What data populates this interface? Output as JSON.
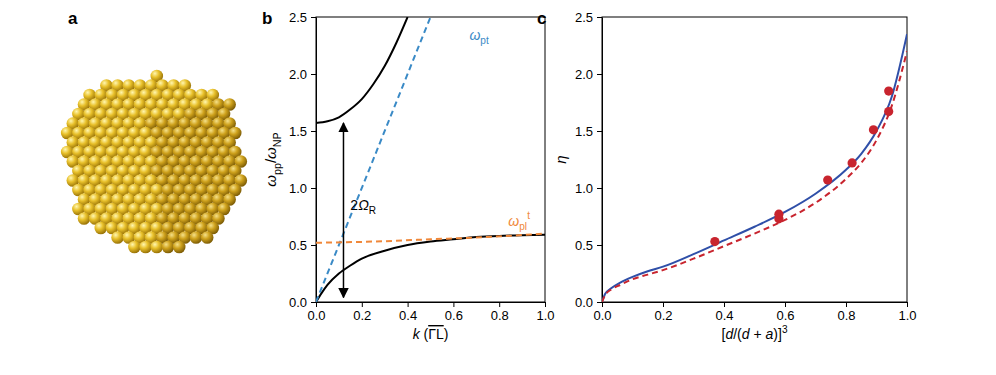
{
  "image_panel": {
    "label": "a"
  },
  "chart_data": [
    {
      "type": "line",
      "panel_label": "b",
      "xlabel": [
        {
          "italic": "k"
        },
        {
          "text": " ("
        },
        {
          "overline": "ΓL"
        },
        {
          "text": ")"
        }
      ],
      "ylabel": [
        {
          "italic": "ω"
        },
        {
          "sub": "pp"
        },
        {
          "text": "/"
        },
        {
          "italic": "ω"
        },
        {
          "sub": "NP"
        }
      ],
      "xlim": [
        0,
        1
      ],
      "ylim": [
        0,
        2.5
      ],
      "xticks": [
        {
          "value": 0,
          "label": "0.0"
        },
        0.2,
        0.4,
        0.6,
        0.8,
        {
          "value": 1,
          "label": "1.0"
        }
      ],
      "yticks": [
        {
          "value": 0,
          "label": "0.0"
        },
        0.5,
        {
          "value": 1,
          "label": "1.0"
        },
        1.5,
        {
          "value": 2,
          "label": "2.0"
        },
        2.5
      ],
      "series": [
        {
          "type": "line",
          "color": "#000000",
          "line_style": "solid",
          "x": [
            0,
            0.05,
            0.1,
            0.15,
            0.2,
            0.25,
            0.3,
            0.35,
            0.4
          ],
          "values": [
            1.57,
            1.585,
            1.62,
            1.69,
            1.78,
            1.91,
            2.07,
            2.27,
            2.5
          ]
        },
        {
          "type": "line",
          "color": "#000000",
          "line_style": "solid",
          "x": [
            0,
            0.025,
            0.05,
            0.1,
            0.15,
            0.2,
            0.3,
            0.4,
            0.5,
            0.6,
            0.7,
            0.8,
            0.9,
            1.0
          ],
          "values": [
            0,
            0.08,
            0.15,
            0.25,
            0.32,
            0.38,
            0.45,
            0.5,
            0.53,
            0.55,
            0.57,
            0.58,
            0.585,
            0.59
          ]
        },
        {
          "type": "line",
          "color": "#3a8ac6",
          "line_style": "dashed",
          "x": [
            0,
            0.5
          ],
          "values": [
            0,
            2.5
          ]
        },
        {
          "type": "line",
          "color": "#f0883a",
          "line_style": "dashed",
          "x": [
            0,
            0.25,
            0.5,
            0.75,
            1.0
          ],
          "values": [
            0.52,
            0.53,
            0.55,
            0.57,
            0.6
          ]
        }
      ],
      "annotations": [
        {
          "parts": [
            {
              "italic": "ω"
            },
            {
              "sub": "pt"
            }
          ],
          "x": 0.67,
          "y": 2.3,
          "color": "#3a8ac6"
        },
        {
          "parts": [
            {
              "italic": "ω"
            },
            {
              "sub": "pl"
            },
            {
              "sup": "t"
            }
          ],
          "x": 0.84,
          "y": 0.67,
          "color": "#f0883a"
        },
        {
          "parts": [
            {
              "text": "2"
            },
            {
              "italic": "Ω"
            },
            {
              "sub": "R"
            }
          ],
          "x": 0.15,
          "y": 0.81,
          "color": "#000000",
          "arrow": {
            "x": 0.12,
            "y": [
              0.04,
              1.57
            ]
          }
        }
      ]
    },
    {
      "type": "line",
      "panel_label": "c",
      "xlabel": [
        {
          "text": "["
        },
        {
          "italic": "d"
        },
        {
          "text": "/("
        },
        {
          "italic": "d"
        },
        {
          "text": " + "
        },
        {
          "italic": "a"
        },
        {
          "text": ")]"
        },
        {
          "sup": "3"
        }
      ],
      "ylabel": [
        {
          "italic": "η"
        }
      ],
      "xlim": [
        0,
        1
      ],
      "ylim": [
        0,
        2.5
      ],
      "xticks": [
        {
          "value": 0,
          "label": "0.0"
        },
        0.2,
        0.4,
        0.6,
        0.8,
        {
          "value": 1,
          "label": "1.0"
        }
      ],
      "yticks": [
        {
          "value": 0,
          "label": "0.0"
        },
        0.5,
        {
          "value": 1,
          "label": "1.0"
        },
        1.5,
        {
          "value": 2,
          "label": "2.0"
        },
        2.5
      ],
      "series": [
        {
          "type": "line",
          "color": "#2f4fa8",
          "line_style": "solid",
          "x": [
            0,
            0.01,
            0.03,
            0.06,
            0.1,
            0.15,
            0.2,
            0.3,
            0.4,
            0.5,
            0.6,
            0.7,
            0.8,
            0.85,
            0.9,
            0.95,
            1.0
          ],
          "values": [
            0,
            0.07,
            0.12,
            0.17,
            0.22,
            0.27,
            0.31,
            0.42,
            0.54,
            0.66,
            0.79,
            0.95,
            1.16,
            1.3,
            1.5,
            1.8,
            2.35
          ]
        },
        {
          "type": "line",
          "color": "#c8242e",
          "line_style": "dashed",
          "x": [
            0,
            0.01,
            0.03,
            0.06,
            0.1,
            0.15,
            0.2,
            0.3,
            0.4,
            0.5,
            0.6,
            0.7,
            0.8,
            0.85,
            0.9,
            0.95,
            1.0
          ],
          "values": [
            0,
            0.06,
            0.11,
            0.15,
            0.2,
            0.24,
            0.28,
            0.38,
            0.49,
            0.6,
            0.72,
            0.87,
            1.08,
            1.22,
            1.42,
            1.72,
            2.2
          ]
        },
        {
          "type": "scatter",
          "color": "#c8242e",
          "marker": "circle",
          "x": [
            0.37,
            0.58,
            0.58,
            0.74,
            0.82,
            0.89,
            0.94,
            0.94
          ],
          "values": [
            0.53,
            0.73,
            0.77,
            1.07,
            1.22,
            1.51,
            1.67,
            1.85
          ]
        }
      ]
    }
  ]
}
